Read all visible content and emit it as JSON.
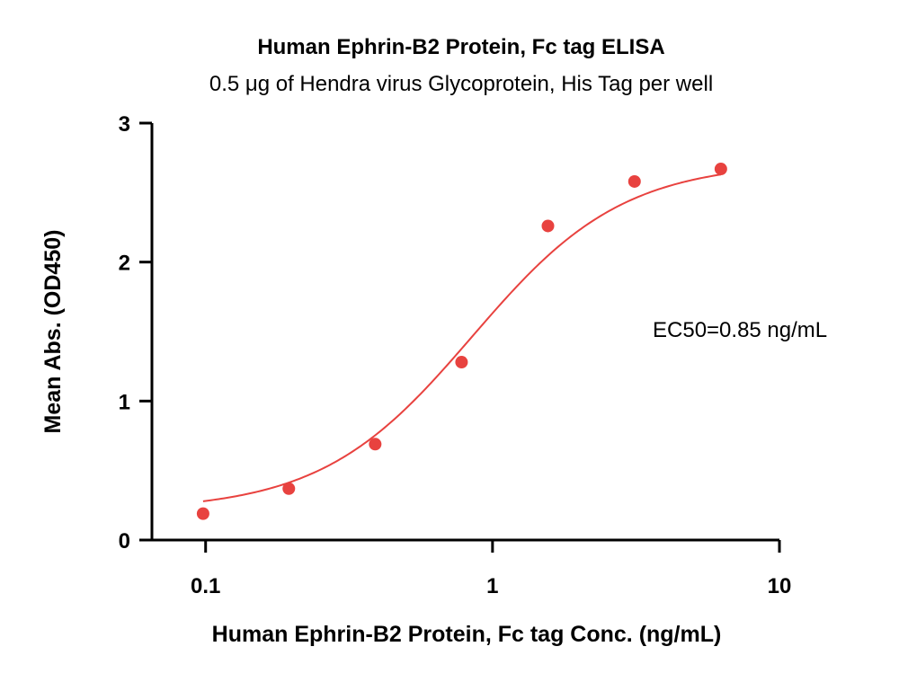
{
  "chart_data": {
    "type": "scatter",
    "title": "Human Ephrin-B2 Protein, Fc tag ELISA",
    "subtitle": "0.5 μg of Hendra virus Glycoprotein, His Tag per well",
    "xlabel": "Human Ephrin-B2 Protein, Fc tag Conc. (ng/mL)",
    "ylabel": "Mean Abs. (OD450)",
    "x_scale": "log",
    "xlim": [
      0.065,
      10
    ],
    "ylim": [
      0,
      3
    ],
    "x_ticks": [
      {
        "value": 0.1,
        "label": "0.1"
      },
      {
        "value": 1,
        "label": "1"
      },
      {
        "value": 10,
        "label": "10"
      }
    ],
    "y_ticks": [
      {
        "value": 0,
        "label": "0"
      },
      {
        "value": 1,
        "label": "1"
      },
      {
        "value": 2,
        "label": "2"
      },
      {
        "value": 3,
        "label": "3"
      }
    ],
    "grid": false,
    "series": [
      {
        "color": "#e8423f",
        "points": [
          {
            "x": 0.098,
            "y": 0.19
          },
          {
            "x": 0.195,
            "y": 0.37
          },
          {
            "x": 0.39,
            "y": 0.69
          },
          {
            "x": 0.78,
            "y": 1.28
          },
          {
            "x": 1.56,
            "y": 2.26
          },
          {
            "x": 3.125,
            "y": 2.58
          },
          {
            "x": 6.25,
            "y": 2.67
          }
        ],
        "fit": {
          "model": "4PL",
          "bottom": 0.21,
          "top": 2.72,
          "ec50": 0.85,
          "hill": 1.65,
          "x_range": [
            0.098,
            6.25
          ]
        }
      }
    ],
    "annotations": [
      {
        "text": "EC50=0.85 ng/mL"
      }
    ]
  }
}
